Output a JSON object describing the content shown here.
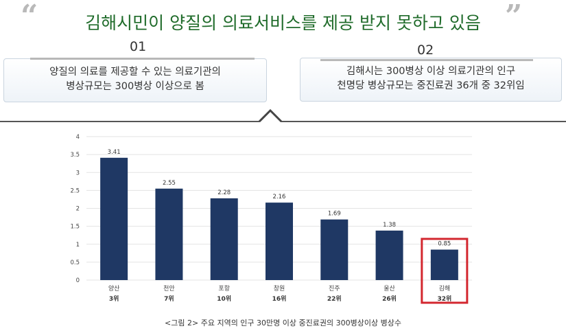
{
  "header": {
    "quote_open": "“",
    "quote_close": "”",
    "title": "김해시민이 양질의 의료서비스를 제공 받지 못하고 있음"
  },
  "points": [
    {
      "number": "01",
      "lines": [
        "양질의 의료를 제공할 수 있는 의료기관의",
        "병상규모는 300병상 이상으로 봄"
      ]
    },
    {
      "number": "02",
      "lines": [
        "김해시는 300병상 이상 의료기관의 인구",
        "천명당 병상규모는 중진료권 36개 중 32위임"
      ]
    }
  ],
  "chart_data": {
    "type": "bar",
    "categories": [
      "양산",
      "천안",
      "포항",
      "창원",
      "진주",
      "울산",
      "김해"
    ],
    "ranks": [
      "3위",
      "7위",
      "10위",
      "16위",
      "22위",
      "26위",
      "32위"
    ],
    "values": [
      3.41,
      2.55,
      2.28,
      2.16,
      1.69,
      1.38,
      0.85
    ],
    "ylim": [
      0,
      4
    ],
    "yticks": [
      "0",
      "0.5",
      "1",
      "1.5",
      "2",
      "2.5",
      "3",
      "3.5",
      "4"
    ],
    "grid": true,
    "highlight_index": 6,
    "colors": {
      "bar": "#1f3864",
      "highlight_box": "#d3272f",
      "grid": "#e3e3e3"
    }
  },
  "caption": "<그림 2> 주요 지역의 인구 30만명 이상 중진료권의 300병상이상 병상수"
}
